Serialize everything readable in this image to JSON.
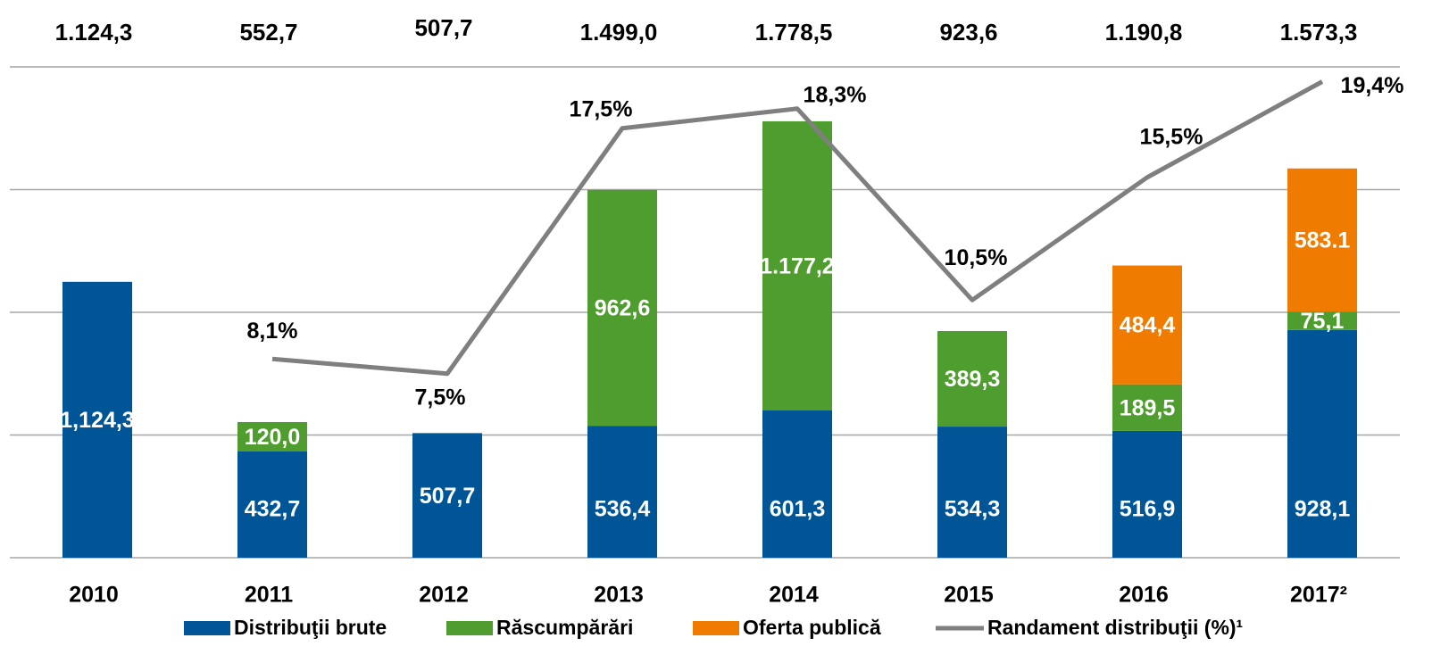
{
  "chart_data": {
    "type": "bar",
    "stacked": true,
    "categories": [
      "2010",
      "2011",
      "2012",
      "2013",
      "2014",
      "2015",
      "2016",
      "2017²"
    ],
    "series": [
      {
        "name": "Distribuţii brute",
        "color": "#005597",
        "values": [
          1124.3,
          432.7,
          507.7,
          536.4,
          601.3,
          534.3,
          516.9,
          928.1
        ],
        "value_labels": [
          "1,124,3",
          "432,7",
          "507,7",
          "536,4",
          "601,3",
          "534,3",
          "516,9",
          "928,1"
        ]
      },
      {
        "name": "Răscumpărări",
        "color": "#4f9d2f",
        "values": [
          null,
          120.0,
          null,
          962.6,
          1177.2,
          389.3,
          189.5,
          75.1
        ],
        "value_labels": [
          null,
          "120,0",
          null,
          "962,6",
          "1.177,2",
          "389,3",
          "189,5",
          "75,1"
        ]
      },
      {
        "name": "Oferta publică",
        "color": "#ef7c00",
        "values": [
          null,
          null,
          null,
          null,
          null,
          null,
          484.4,
          583.1
        ],
        "value_labels": [
          null,
          null,
          null,
          null,
          null,
          null,
          "484,4",
          "583.1"
        ]
      },
      {
        "name": "Randament distribuţii (%)¹",
        "color": "#7f7f7f",
        "type": "line",
        "axis": "y2",
        "values": [
          null,
          8.1,
          7.5,
          17.5,
          18.3,
          10.5,
          15.5,
          19.4
        ],
        "value_labels": [
          null,
          "8,1%",
          "7,5%",
          "17,5%",
          "18,3%",
          "10,5%",
          "15,5%",
          "19,4%"
        ]
      }
    ],
    "totals": {
      "values": [
        1124.3,
        552.7,
        507.7,
        1499.0,
        1778.5,
        923.6,
        1190.8,
        1573.3
      ],
      "value_labels": [
        "1.124,3",
        "552,7",
        "507,7",
        "1.499,0",
        "1.778,5",
        "923,6",
        "1.190,8",
        "1.573,3"
      ]
    },
    "ylim": [
      0,
      2000
    ],
    "yticks": [
      0,
      500,
      1000,
      1500,
      2000
    ],
    "y2lim": [
      0,
      20
    ],
    "grid": true,
    "legend": "bottom"
  }
}
